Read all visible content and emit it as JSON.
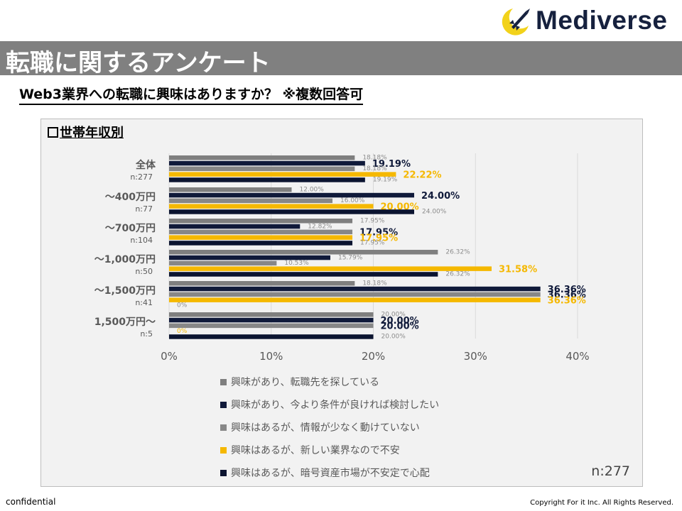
{
  "brand": {
    "name": "Mediverse"
  },
  "header": {
    "title": "転職に関するアンケート",
    "question": "Web3業界への転職に興味はありますか？ ※複数回答可"
  },
  "panel": {
    "subtitle": "世帯年収別",
    "sample_total": "n:277"
  },
  "footer": {
    "left": "confidential",
    "right": "Copyright For it Inc. All Rights Reserved."
  },
  "chart_data": {
    "type": "bar",
    "orientation": "horizontal",
    "categories": [
      {
        "label": "全体",
        "n": "n:277"
      },
      {
        "label": "～400万円",
        "n": "n:77"
      },
      {
        "label": "～700万円",
        "n": "n:104"
      },
      {
        "label": "～1,000万円",
        "n": "n:50"
      },
      {
        "label": "～1,500万円",
        "n": "n:41"
      },
      {
        "label": "1,500万円～",
        "n": "n:5"
      }
    ],
    "series": [
      {
        "name": "興味があり、転職先を探している",
        "color": "#7f7f7f",
        "values": [
          18.18,
          12.0,
          17.95,
          26.32,
          18.18,
          20.0
        ],
        "labels": [
          "18.18%",
          "12.00%",
          "17.95%",
          "26.32%",
          "18.18%",
          "20.00%"
        ]
      },
      {
        "name": "興味があり、今より条件が良ければ検討したい",
        "color": "#101a3a",
        "values": [
          19.19,
          24.0,
          12.82,
          15.79,
          36.36,
          20.0
        ],
        "labels": [
          "19.19%",
          "24.00%",
          "12.82%",
          "15.79%",
          "36.36%",
          "20.00%"
        ]
      },
      {
        "name": "興味はあるが、情報が少なく動けていない",
        "color": "#878787",
        "values": [
          18.18,
          16.0,
          17.95,
          10.53,
          36.36,
          20.0
        ],
        "labels": [
          "18.18%",
          "16.00%",
          "17.95%",
          "10.53%",
          "36.36%",
          "20.00%"
        ]
      },
      {
        "name": "興味はあるが、新しい業界なので不安",
        "color": "#f5b800",
        "values": [
          22.22,
          20.0,
          17.95,
          31.58,
          36.36,
          0
        ],
        "labels": [
          "22.22%",
          "20.00%",
          "17.95%",
          "31.58%",
          "36.36%",
          "0%"
        ]
      },
      {
        "name": "興味はあるが、暗号資産市場が不安定で心配",
        "color": "#0b1430",
        "values": [
          19.19,
          24.0,
          17.95,
          26.32,
          0,
          20.0
        ],
        "labels": [
          "19.19%",
          "24.00%",
          "17.95%",
          "26.32%",
          "0%",
          "20.00%"
        ]
      }
    ],
    "xlim": [
      0,
      40
    ],
    "xticks": [
      0,
      10,
      20,
      30,
      40
    ],
    "xtick_labels": [
      "0%",
      "10%",
      "20%",
      "30%",
      "40%"
    ],
    "legend_position": "bottom",
    "grid": true
  }
}
